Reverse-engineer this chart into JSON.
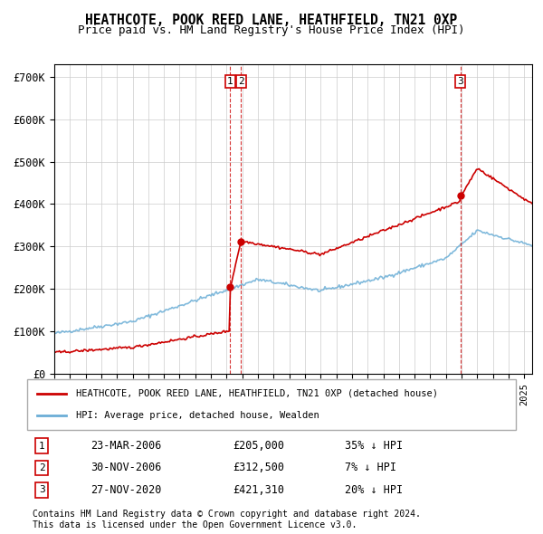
{
  "title": "HEATHCOTE, POOK REED LANE, HEATHFIELD, TN21 0XP",
  "subtitle": "Price paid vs. HM Land Registry's House Price Index (HPI)",
  "legend_line1": "HEATHCOTE, POOK REED LANE, HEATHFIELD, TN21 0XP (detached house)",
  "legend_line2": "HPI: Average price, detached house, Wealden",
  "footnote1": "Contains HM Land Registry data © Crown copyright and database right 2024.",
  "footnote2": "This data is licensed under the Open Government Licence v3.0.",
  "transactions": [
    {
      "num": 1,
      "date": "23-MAR-2006",
      "price": "£205,000",
      "hpi": "35% ↓ HPI",
      "x": 2006.23
    },
    {
      "num": 2,
      "date": "30-NOV-2006",
      "price": "£312,500",
      "hpi": "7% ↓ HPI",
      "x": 2006.92
    },
    {
      "num": 3,
      "date": "27-NOV-2020",
      "price": "£421,310",
      "hpi": "20% ↓ HPI",
      "x": 2020.92
    }
  ],
  "transaction_values": [
    205000,
    312500,
    421310
  ],
  "ylim": [
    0,
    730000
  ],
  "yticks": [
    0,
    100000,
    200000,
    300000,
    400000,
    500000,
    600000,
    700000
  ],
  "ytick_labels": [
    "£0",
    "£100K",
    "£200K",
    "£300K",
    "£400K",
    "£500K",
    "£600K",
    "£700K"
  ],
  "hpi_color": "#6baed6",
  "price_color": "#cc0000",
  "background_color": "#ffffff",
  "grid_color": "#cccccc"
}
